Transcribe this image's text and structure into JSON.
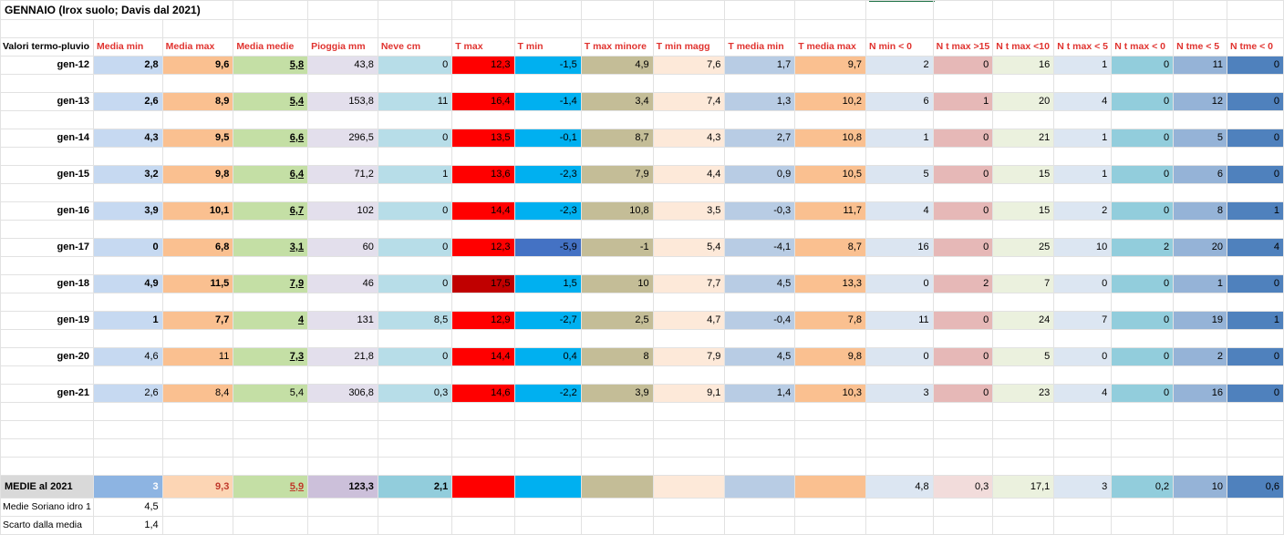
{
  "sheet": {
    "title": "GENNAIO (Irox suolo; Davis dal 2021)",
    "row_header_label": "Valori termo-pluvio",
    "columns": [
      "Media min",
      "Media max",
      "Media medie",
      "Pioggia mm",
      "Neve cm",
      "T max",
      "T min",
      "T max minore",
      "T min magg",
      "T media min",
      "T media max",
      "N min < 0",
      "N t max >15",
      "N t max <10",
      "N t max < 5",
      "N t max < 0",
      "N tme < 5",
      "N tme < 0"
    ],
    "rows": [
      {
        "label": "gen-12",
        "values": [
          "2,8",
          "9,6",
          "5,8",
          "43,8",
          "0",
          "12,3",
          "-1,5",
          "4,9",
          "7,6",
          "1,7",
          "9,7",
          "2",
          "0",
          "16",
          "1",
          "0",
          "11",
          "0"
        ]
      },
      {
        "label": "gen-13",
        "values": [
          "2,6",
          "8,9",
          "5,4",
          "153,8",
          "11",
          "16,4",
          "-1,4",
          "3,4",
          "7,4",
          "1,3",
          "10,2",
          "6",
          "1",
          "20",
          "4",
          "0",
          "12",
          "0"
        ]
      },
      {
        "label": "gen-14",
        "values": [
          "4,3",
          "9,5",
          "6,6",
          "296,5",
          "0",
          "13,5",
          "-0,1",
          "8,7",
          "4,3",
          "2,7",
          "10,8",
          "1",
          "0",
          "21",
          "1",
          "0",
          "5",
          "0"
        ]
      },
      {
        "label": "gen-15",
        "values": [
          "3,2",
          "9,8",
          "6,4",
          "71,2",
          "1",
          "13,6",
          "-2,3",
          "7,9",
          "4,4",
          "0,9",
          "10,5",
          "5",
          "0",
          "15",
          "1",
          "0",
          "6",
          "0"
        ]
      },
      {
        "label": "gen-16",
        "values": [
          "3,9",
          "10,1",
          "6,7",
          "102",
          "0",
          "14,4",
          "-2,3",
          "10,8",
          "3,5",
          "-0,3",
          "11,7",
          "4",
          "0",
          "15",
          "2",
          "0",
          "8",
          "1"
        ]
      },
      {
        "label": "gen-17",
        "values": [
          "0",
          "6,8",
          "3,1",
          "60",
          "0",
          "12,3",
          "-5,9",
          "-1",
          "5,4",
          "-4,1",
          "8,7",
          "16",
          "0",
          "25",
          "10",
          "2",
          "20",
          "4"
        ]
      },
      {
        "label": "gen-18",
        "values": [
          "4,9",
          "11,5",
          "7,9",
          "46",
          "0",
          "17,5",
          "1,5",
          "10",
          "7,7",
          "4,5",
          "13,3",
          "0",
          "2",
          "7",
          "0",
          "0",
          "1",
          "0"
        ]
      },
      {
        "label": "gen-19",
        "values": [
          "1",
          "7,7",
          "4",
          "131",
          "8,5",
          "12,9",
          "-2,7",
          "2,5",
          "4,7",
          "-0,4",
          "7,8",
          "11",
          "0",
          "24",
          "7",
          "0",
          "19",
          "1"
        ]
      },
      {
        "label": "gen-20",
        "values": [
          "4,6",
          "11",
          "7,3",
          "21,8",
          "0",
          "14,4",
          "0,4",
          "8",
          "7,9",
          "4,5",
          "9,8",
          "0",
          "0",
          "5",
          "0",
          "0",
          "2",
          "0"
        ]
      },
      {
        "label": "gen-21",
        "values": [
          "2,6",
          "8,4",
          "5,4",
          "306,8",
          "0,3",
          "14,6",
          "-2,2",
          "3,9",
          "9,1",
          "1,4",
          "10,3",
          "3",
          "0",
          "23",
          "4",
          "0",
          "16",
          "0"
        ]
      }
    ],
    "medie": {
      "label": "MEDIE al 2021",
      "values": [
        "3",
        "9,3",
        "5,9",
        "123,3",
        "2,1",
        "",
        "",
        "",
        "",
        "",
        "",
        "4,8",
        "0,3",
        "17,1",
        "3",
        "0,2",
        "10",
        "0,6"
      ]
    },
    "footer": [
      {
        "label": "Medie Soriano idro 1",
        "value": "4,5"
      },
      {
        "label": "Scarto dalla media",
        "value": "1,4"
      }
    ]
  },
  "colors": {
    "col_fills": [
      "#c6d9f1",
      "#fac090",
      "#c4dfa5",
      "#e3dfec",
      "#b7dde8",
      "#ff0000",
      "#00b0f0",
      "#c4bd97",
      "#fde9d9",
      "#b8cce4",
      "#fac090",
      "#dbe5f1",
      "#e6b8b7",
      "#ebf1de",
      "#dce6f2",
      "#92cddc",
      "#95b3d7",
      "#4f81bd"
    ],
    "title_accent": "#e0332f"
  }
}
